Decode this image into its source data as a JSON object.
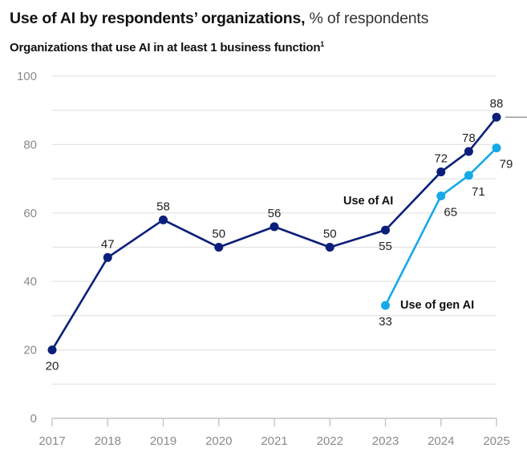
{
  "header": {
    "title_bold": "Use of AI by respondents’ organizations,",
    "title_light": " % of respondents",
    "subtitle": "Organizations that use AI in at least 1 business function",
    "subtitle_footnote": "1"
  },
  "chart_data": {
    "type": "line",
    "title": "Use of AI by respondents’ organizations, % of respondents",
    "subtitle": "Organizations that use AI in at least 1 business function",
    "xlabel": "",
    "ylabel": "% of respondents",
    "ylim": [
      0,
      100
    ],
    "y_ticks": [
      0,
      20,
      40,
      60,
      80,
      100
    ],
    "y_gridlines": [
      10,
      20,
      30,
      40,
      50,
      60,
      70,
      80,
      90,
      100
    ],
    "x_ticks": [
      "2017",
      "2018",
      "2019",
      "2020",
      "2021",
      "2022",
      "2023",
      "2024",
      "2025"
    ],
    "x_tick_values": [
      2017,
      2018,
      2019,
      2020,
      2021,
      2022,
      2023,
      2024,
      2025
    ],
    "grid": true,
    "legend": "inline-labels",
    "series": [
      {
        "name": "Use of AI",
        "color": "#0b1f7a",
        "x": [
          2017,
          2018,
          2019,
          2020,
          2021,
          2022,
          2023,
          2024,
          2024.5,
          2025
        ],
        "values": [
          20,
          47,
          58,
          50,
          56,
          50,
          55,
          72,
          78,
          88
        ],
        "label_positions": [
          "below",
          "above",
          "above",
          "above",
          "above",
          "above",
          "below",
          "above",
          "above",
          "above"
        ]
      },
      {
        "name": "Use of gen AI",
        "color": "#16a9e8",
        "x": [
          2023,
          2024,
          2024.5,
          2025
        ],
        "values": [
          33,
          65,
          71,
          79
        ],
        "label_positions": [
          "below",
          "below",
          "below",
          "below"
        ]
      }
    ]
  }
}
